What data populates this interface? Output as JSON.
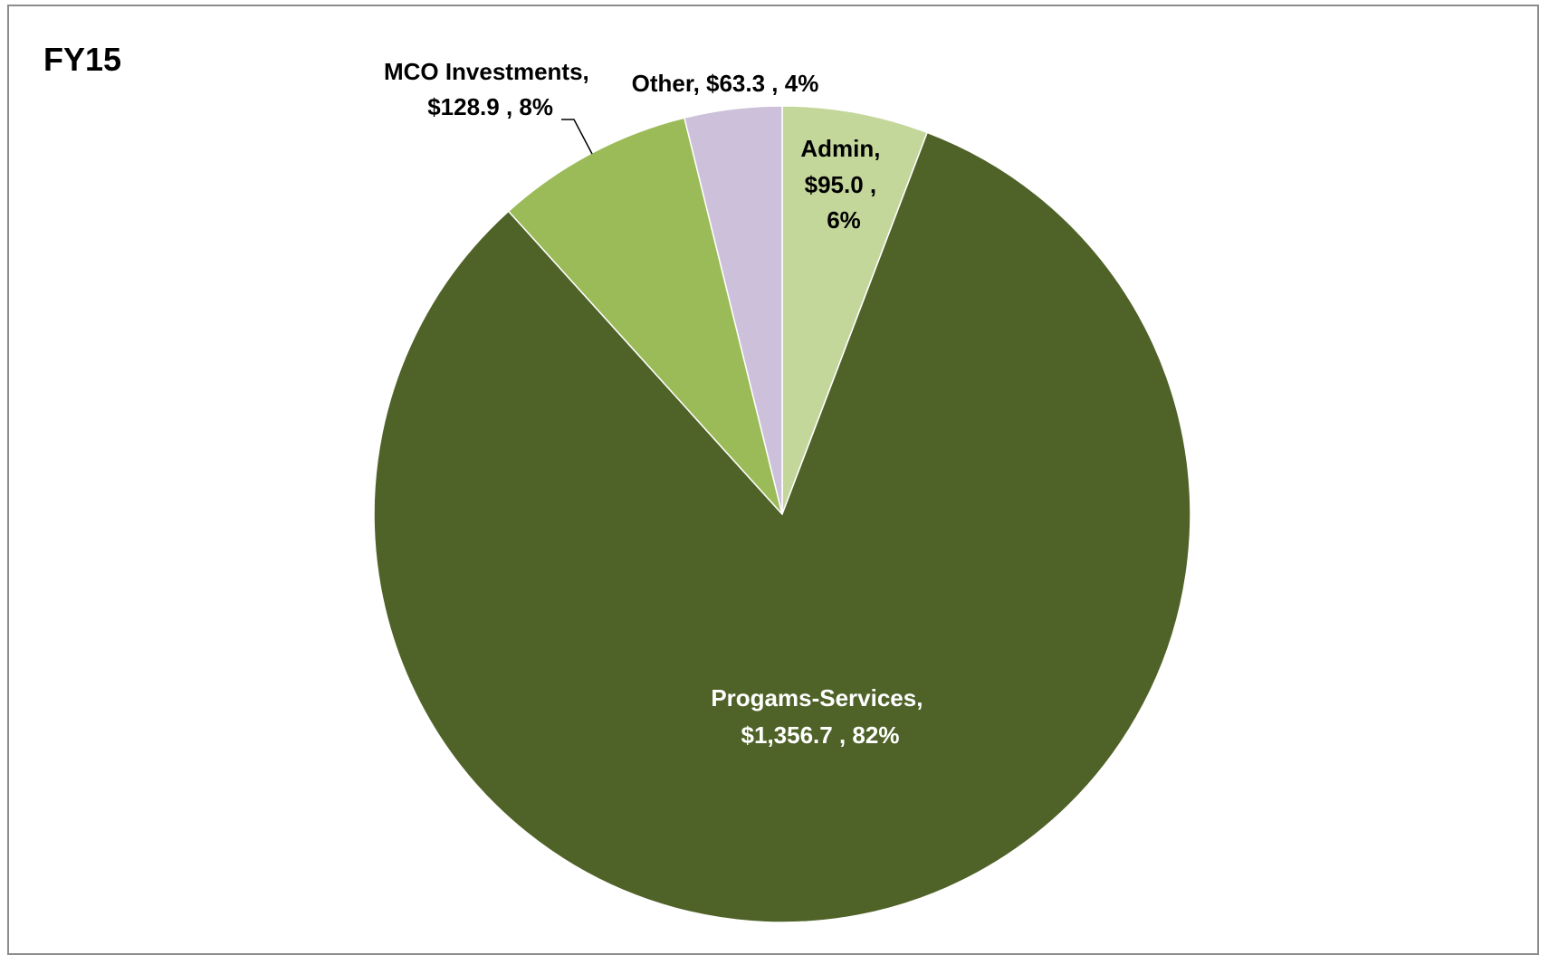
{
  "chart_data": {
    "type": "pie",
    "title": "FY15",
    "start_angle_deg": 0,
    "direction": "clockwise",
    "slices": [
      {
        "name": "Admin",
        "value": 95.0,
        "value_label": "$95.0",
        "percent_label": "6%",
        "color": "#c4d79b",
        "label_color": "#000000"
      },
      {
        "name": "Progams-Services",
        "value": 1356.7,
        "value_label": "$1,356.7",
        "percent_label": "82%",
        "color": "#4f6228",
        "label_color": "#ffffff"
      },
      {
        "name": "MCO Investments",
        "value": 128.9,
        "value_label": "$128.9",
        "percent_label": "8%",
        "color": "#9bbb59",
        "label_color": "#000000"
      },
      {
        "name": "Other",
        "value": 63.3,
        "value_label": "$63.3",
        "percent_label": "4%",
        "color": "#ccc0da",
        "label_color": "#000000"
      }
    ],
    "labels": {
      "admin": [
        "Admin,",
        "$95.0 ,",
        "6%"
      ],
      "programs": [
        "Progams-Services,",
        "$1,356.7 , 82%"
      ],
      "mco": [
        "MCO Investments,",
        "$128.9 , 8%"
      ],
      "other": [
        "Other, $63.3 , 4%"
      ]
    }
  }
}
